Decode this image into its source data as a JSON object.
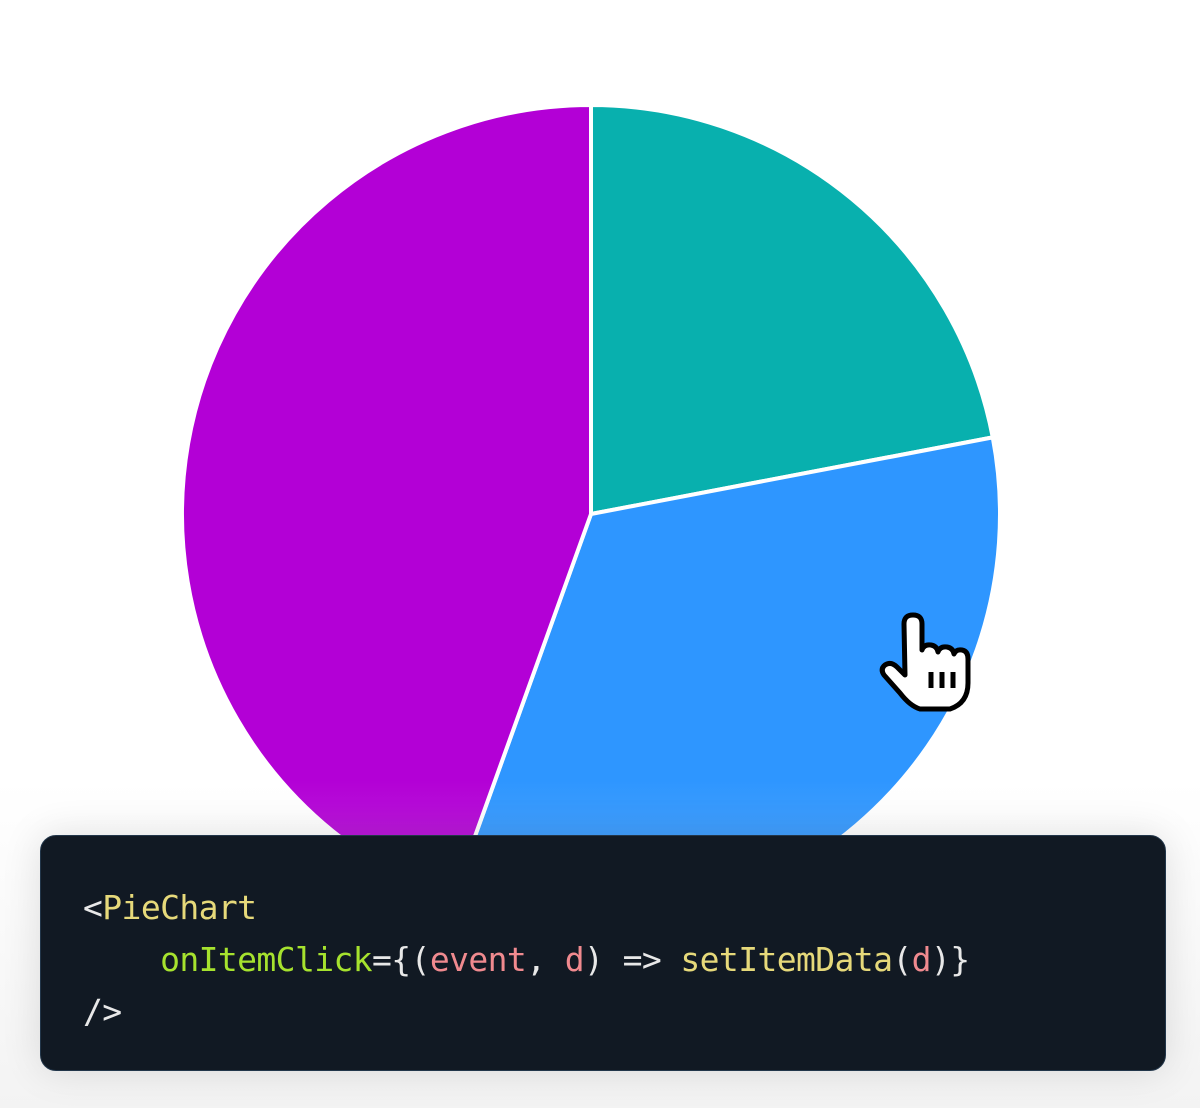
{
  "chart_data": {
    "type": "pie",
    "slices": [
      {
        "value": 22,
        "color": "#08b0ae"
      },
      {
        "value": 33.5,
        "color": "#2e96ff"
      },
      {
        "value": 44.5,
        "color": "#b300d6"
      }
    ],
    "start_angle_deg": 0,
    "direction": "clockwise",
    "legend": "none"
  },
  "code": {
    "line1": {
      "open": "<",
      "component": "PieChart"
    },
    "line2": {
      "indent": "    ",
      "prop": "onItemClick",
      "eq_brace": "={",
      "paren_open": "(",
      "arg1": "event",
      "comma": ", ",
      "arg2": "d",
      "paren_close": ")",
      "arrow": " => ",
      "fn": "setItemData",
      "call_open": "(",
      "call_arg": "d",
      "call_close": ")",
      "brace_close": "}"
    },
    "line3": {
      "close": "/>"
    }
  },
  "cursor": {
    "icon": "hand-pointer-icon"
  }
}
